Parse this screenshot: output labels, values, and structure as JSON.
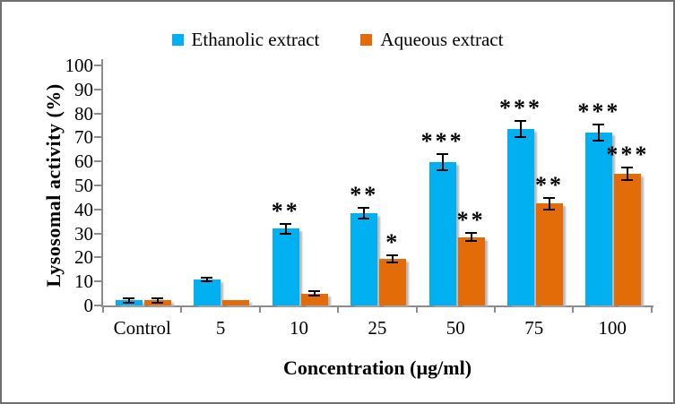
{
  "chart_data": {
    "type": "bar",
    "xlabel": "Concentration (µg/ml)",
    "ylabel": "Lysosomal activity (%)",
    "categories": [
      "Control",
      "5",
      "10",
      "25",
      "50",
      "75",
      "100"
    ],
    "series": [
      {
        "name": "Ethanolic extract",
        "color": "#00B0F0",
        "values": [
          2.1,
          10.8,
          32,
          38.5,
          59.8,
          73.5,
          72
        ],
        "errors": [
          0.8,
          0.7,
          2,
          2.2,
          3.3,
          3.5,
          3.2
        ],
        "significance": [
          "",
          "",
          "**",
          "**",
          "***",
          "***",
          "***"
        ]
      },
      {
        "name": "Aqueous extract",
        "color": "#E36C09",
        "values": [
          2.1,
          2.3,
          5,
          19.3,
          28.4,
          42.4,
          54.8
        ],
        "errors": [
          0.8,
          0,
          0.8,
          1.5,
          1.7,
          2.4,
          2.7
        ],
        "significance": [
          "",
          "",
          "",
          "*",
          "**",
          "**",
          "***"
        ]
      }
    ],
    "ylim": [
      0,
      100
    ],
    "ytick_step": 10,
    "grid": false,
    "legend_position": "top",
    "axis_color": "#8c8c8c",
    "error_bar_color": "#000000"
  }
}
